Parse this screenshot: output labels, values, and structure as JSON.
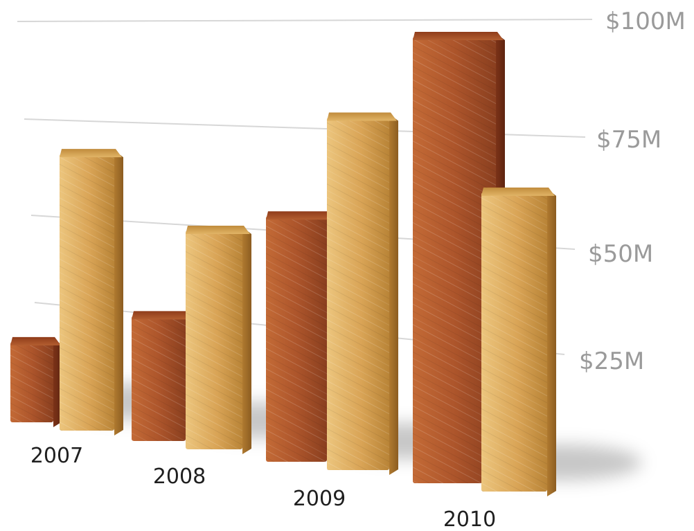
{
  "chart_data": {
    "type": "bar",
    "categories": [
      "2007",
      "2008",
      "2009",
      "2010"
    ],
    "series": [
      {
        "values": [
          18,
          28,
          55,
          100
        ]
      },
      {
        "values": [
          62,
          49,
          79,
          67
        ]
      }
    ],
    "y_ticks": [
      {
        "value": 25,
        "label": "$25M"
      },
      {
        "value": 50,
        "label": "$50M"
      },
      {
        "value": 75,
        "label": "$75M"
      },
      {
        "value": 100,
        "label": "$100M"
      }
    ],
    "ylim": [
      0,
      100
    ],
    "grid": true,
    "title": "",
    "xlabel": "",
    "ylabel": "",
    "colors": {
      "series_1": "#a9512a",
      "series_2": "#d9a052",
      "gridline": "#d7d7d7",
      "tick_label": "#9a9a9a",
      "category_label": "#1f1f1f"
    }
  }
}
